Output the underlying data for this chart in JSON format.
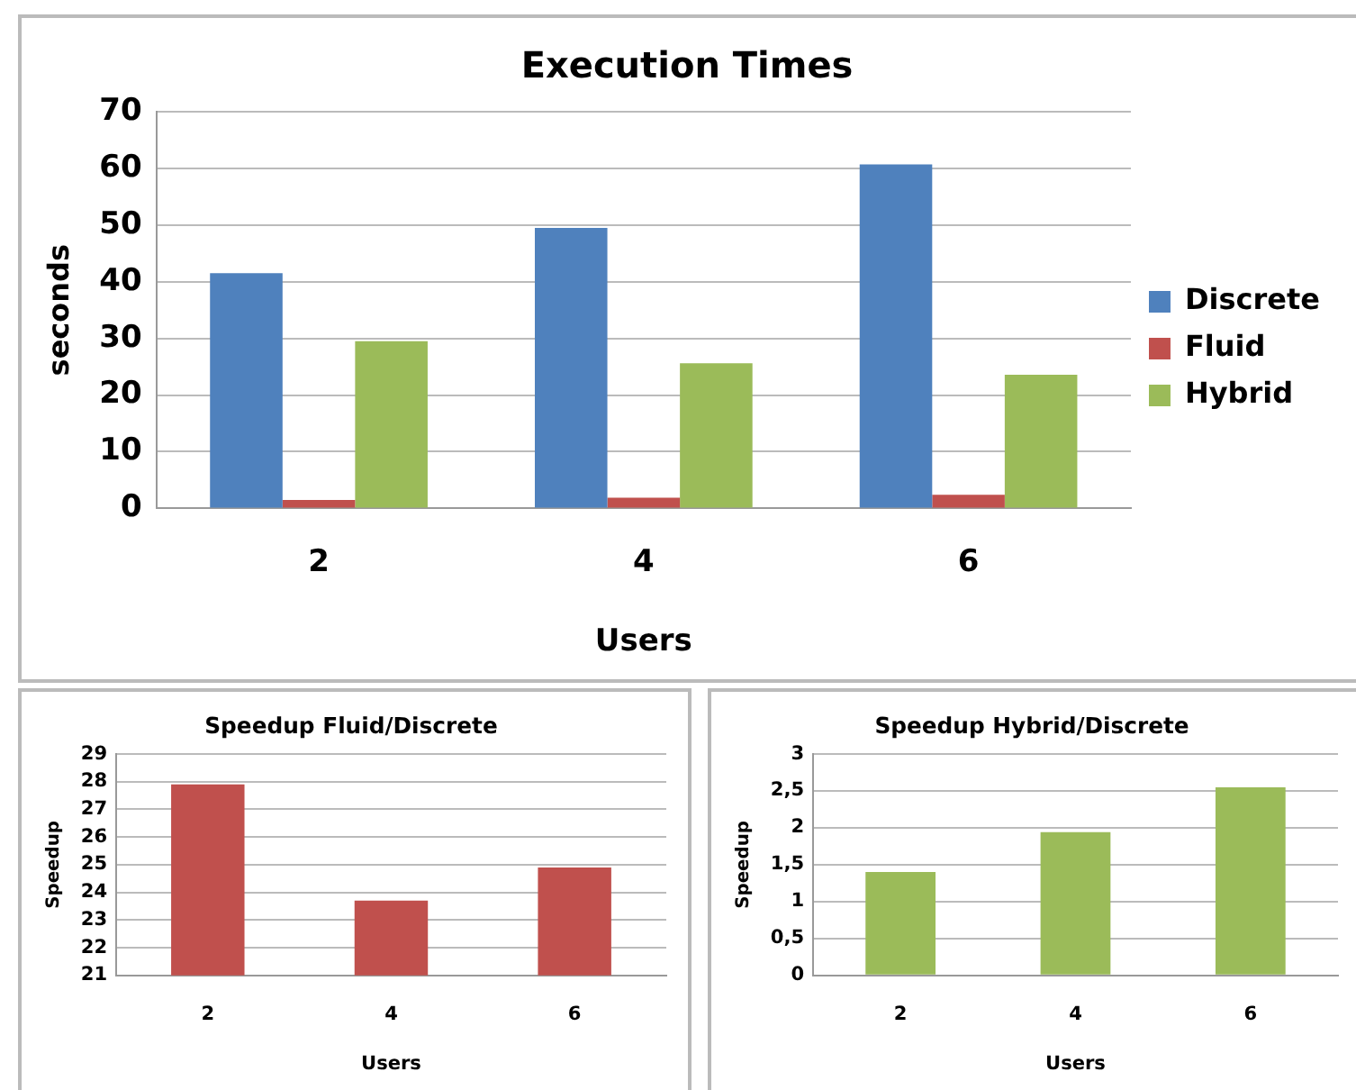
{
  "chart_data": [
    {
      "type": "bar",
      "title": "Execution Times",
      "xlabel": "Users",
      "ylabel": "seconds",
      "categories": [
        "2",
        "4",
        "6"
      ],
      "series": [
        {
          "name": "Discrete",
          "color": "#4f81bd",
          "values": [
            41.5,
            49.5,
            60.7
          ]
        },
        {
          "name": "Fluid",
          "color": "#c0504d",
          "values": [
            1.5,
            1.9,
            2.4
          ]
        },
        {
          "name": "Hybrid",
          "color": "#9bbb59",
          "values": [
            29.5,
            25.6,
            23.6
          ]
        }
      ],
      "ylim": [
        0,
        70
      ],
      "yticks": [
        0,
        10,
        20,
        30,
        40,
        50,
        60,
        70
      ],
      "grid": "y",
      "legend": "right"
    },
    {
      "type": "bar",
      "title": "Speedup Fluid/Discrete",
      "xlabel": "Users",
      "ylabel": "Speedup",
      "categories": [
        "2",
        "4",
        "6"
      ],
      "series": [
        {
          "color": "#c0504d",
          "values": [
            27.9,
            23.7,
            24.9
          ]
        }
      ],
      "ylim": [
        21,
        29
      ],
      "yticks": [
        21,
        22,
        23,
        24,
        25,
        26,
        27,
        28,
        29
      ],
      "grid": "y"
    },
    {
      "type": "bar",
      "title": "Speedup Hybrid/Discrete",
      "xlabel": "Users",
      "ylabel": "Speedup",
      "categories": [
        "2",
        "4",
        "6"
      ],
      "series": [
        {
          "color": "#9bbb59",
          "values": [
            1.4,
            1.94,
            2.55
          ]
        }
      ],
      "ylim": [
        0,
        3
      ],
      "yticks": [
        0,
        {
          "value": 0.5,
          "label": "0,5"
        },
        1,
        {
          "value": 1.5,
          "label": "1,5"
        },
        2,
        {
          "value": 2.5,
          "label": "2,5"
        },
        3
      ],
      "grid": "y"
    }
  ]
}
